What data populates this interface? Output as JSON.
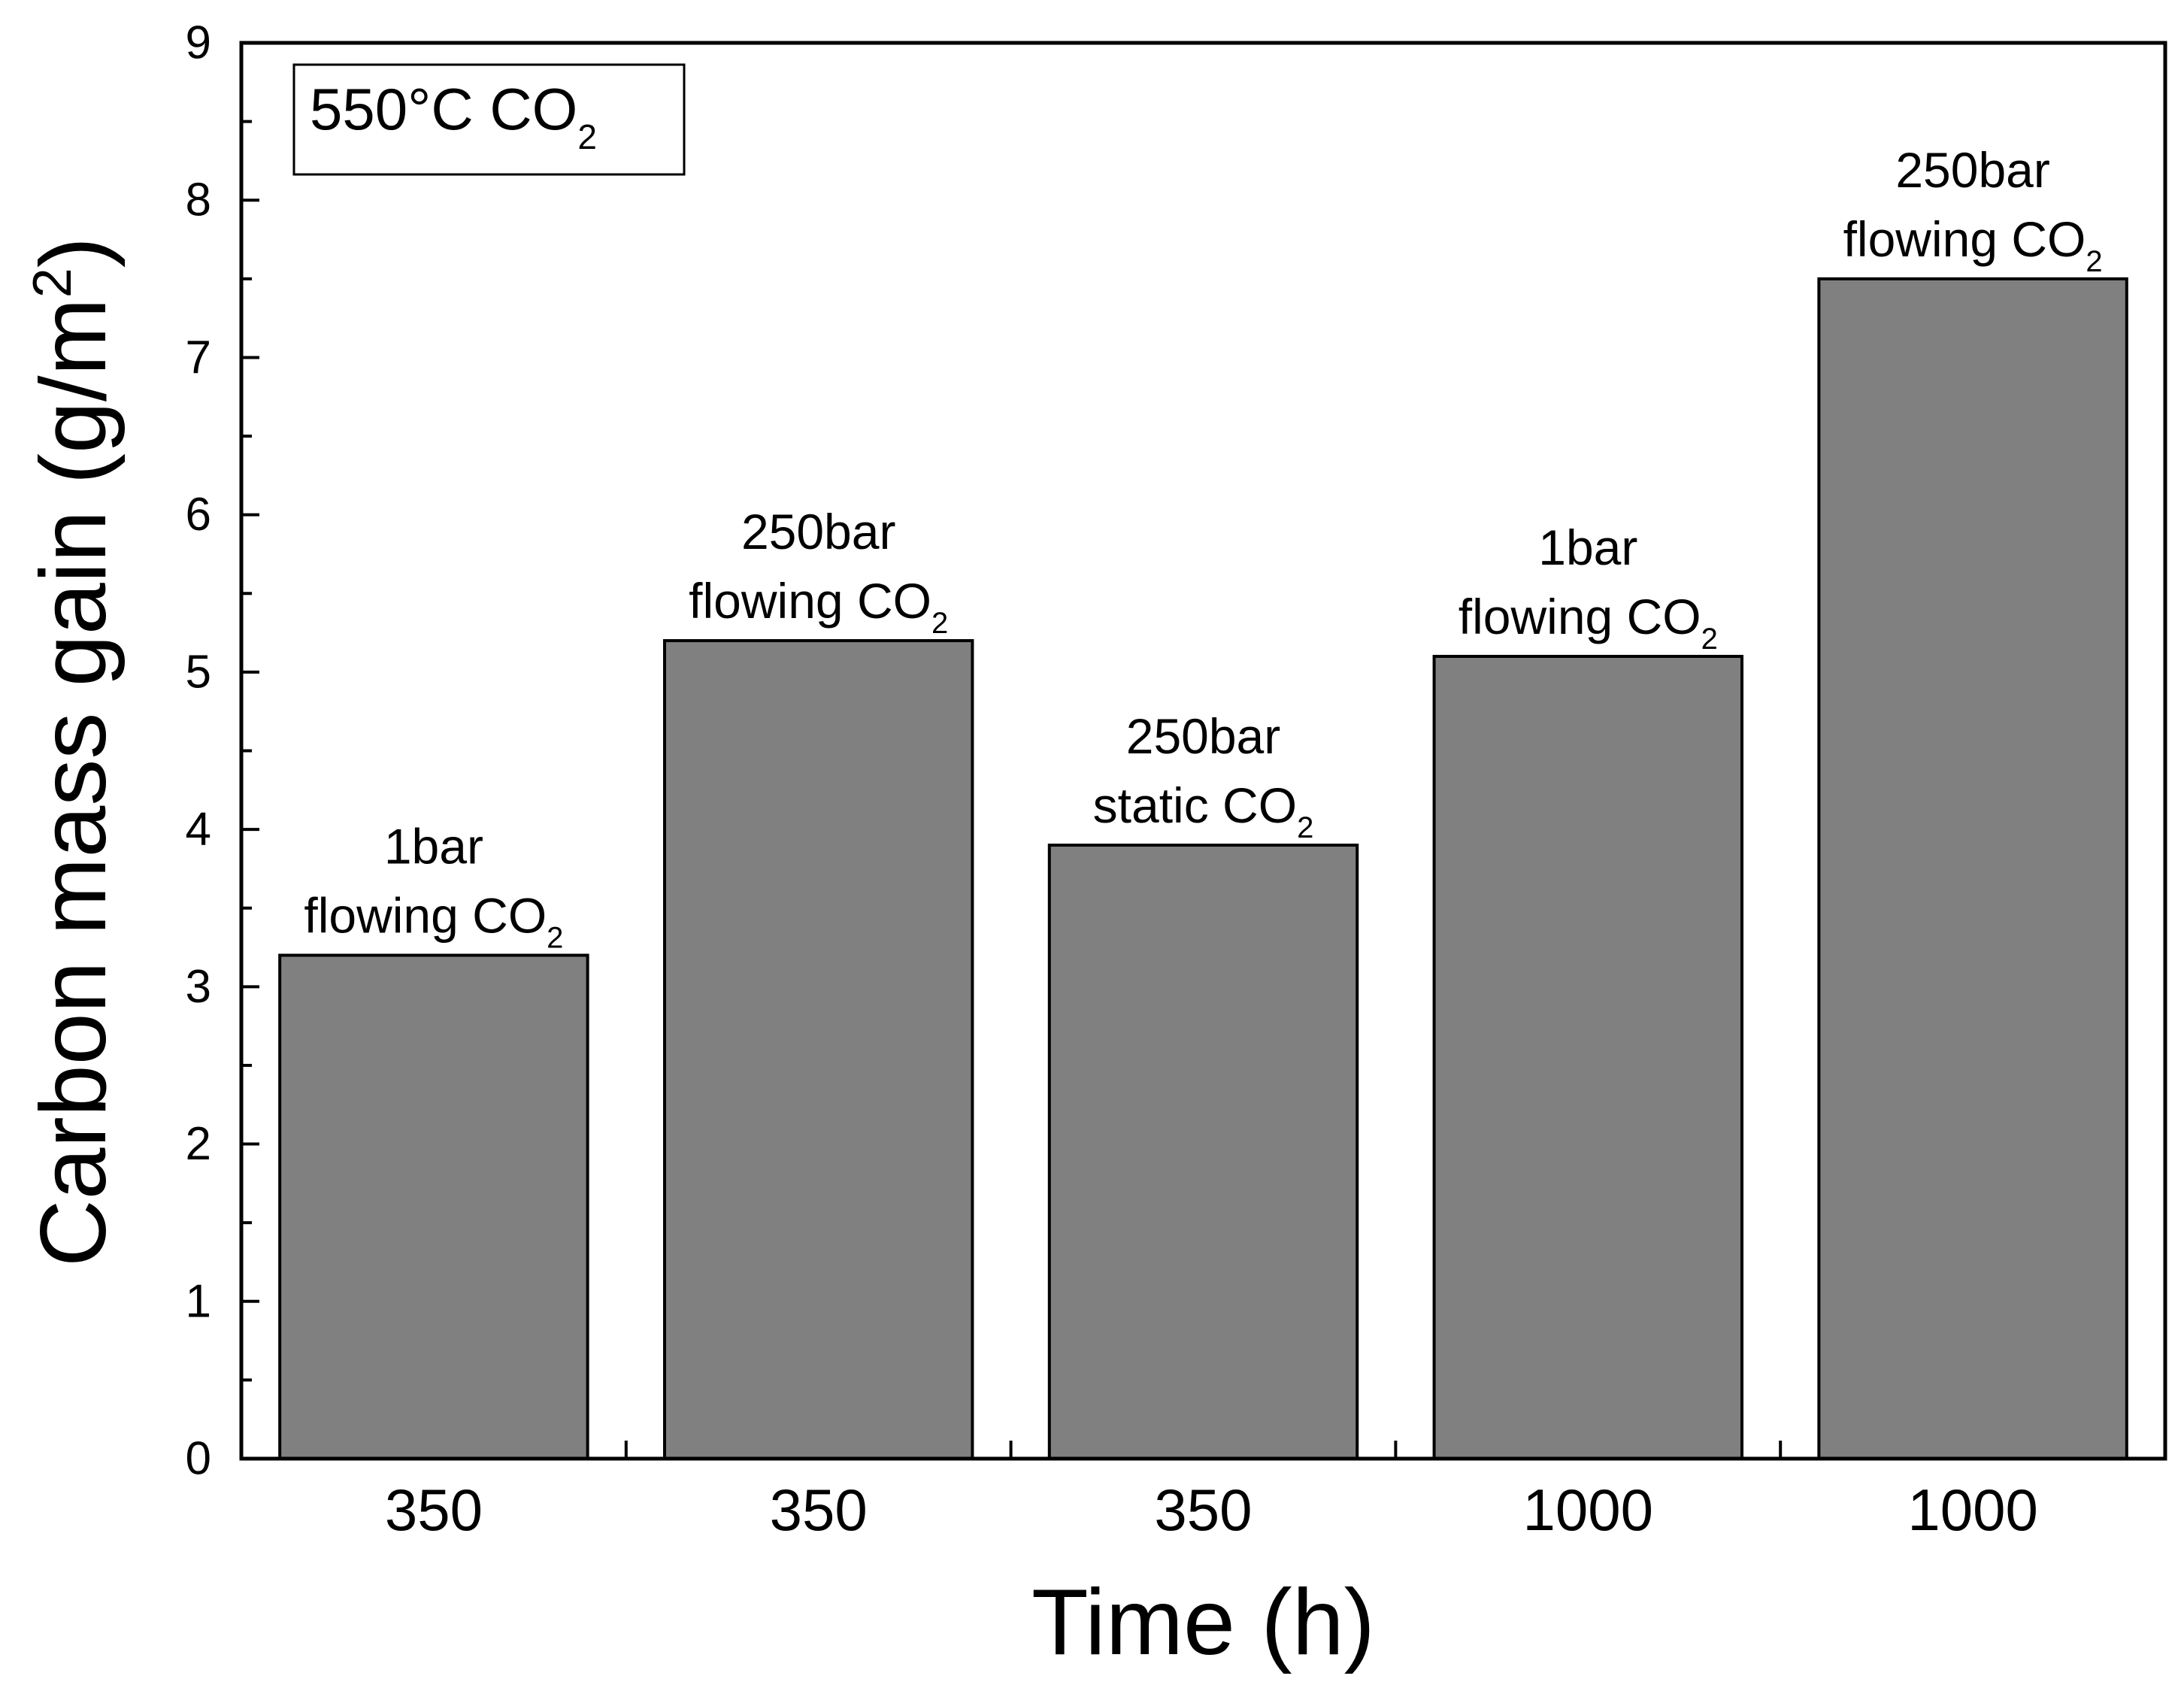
{
  "chart_data": {
    "type": "bar",
    "title": "",
    "xlabel": "Time (h)",
    "ylabel": "Carbon mass gain (g/m",
    "ylabel_superscript": "2",
    "ylabel_suffix": ")",
    "ylim": [
      0,
      9
    ],
    "y_major_ticks": [
      "0",
      "1",
      "2",
      "3",
      "4",
      "5",
      "6",
      "7",
      "8",
      "9"
    ],
    "grid": false,
    "bar_color": "#808080",
    "legend_box": {
      "text": "550°C CO",
      "subscript": "2",
      "placement": "top-left"
    },
    "categories": [
      "350",
      "350",
      "350",
      "1000",
      "1000"
    ],
    "values": [
      3.2,
      5.2,
      3.9,
      5.1,
      7.5
    ],
    "annotations": [
      {
        "line1": "1bar",
        "line2": "flowing CO",
        "sub": "2"
      },
      {
        "line1": "250bar",
        "line2": "flowing CO",
        "sub": "2"
      },
      {
        "line1": "250bar",
        "line2": "static CO",
        "sub": "2"
      },
      {
        "line1": "1bar",
        "line2": "flowing CO",
        "sub": "2"
      },
      {
        "line1": "250bar",
        "line2": "flowing CO",
        "sub": "2"
      }
    ]
  }
}
